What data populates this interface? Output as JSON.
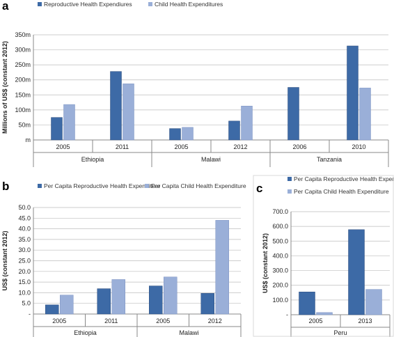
{
  "colors": {
    "dark": "#3d6aa6",
    "light": "#9aafd8",
    "stroke": "#2f4f7f"
  },
  "chart_data": [
    {
      "panel": "a",
      "type": "bar",
      "ylabel": "Millions of US$ (constant 2012)",
      "yticks": [
        "m",
        "50m",
        "100m",
        "150m",
        "200m",
        "250m",
        "300m",
        "350m"
      ],
      "ylim": [
        0,
        350
      ],
      "legend_position": "top",
      "categories": [
        "2005",
        "2011",
        "2005",
        "2012",
        "2006",
        "2010"
      ],
      "groups": [
        {
          "label": "Ethiopia",
          "span": [
            0,
            1
          ]
        },
        {
          "label": "Malawi",
          "span": [
            2,
            3
          ]
        },
        {
          "label": "Tanzania",
          "span": [
            4,
            5
          ]
        }
      ],
      "series": [
        {
          "name": "Reproductive Health Expendiures",
          "values": [
            75,
            228,
            38,
            63,
            175,
            313
          ]
        },
        {
          "name": "Child Health Expenditures",
          "values": [
            118,
            187,
            42,
            113,
            null,
            173
          ]
        }
      ]
    },
    {
      "panel": "b",
      "type": "bar",
      "ylabel": "US$ (constant 2012)",
      "yticks": [
        "-",
        "5.0",
        "10.0",
        "15.0",
        "20.0",
        "25.0",
        "30.0",
        "35.0",
        "40.0",
        "45.0",
        "50.0"
      ],
      "ylim": [
        0,
        50
      ],
      "legend_position": "top",
      "categories": [
        "2005",
        "2011",
        "2005",
        "2012"
      ],
      "groups": [
        {
          "label": "Ethiopia",
          "span": [
            0,
            1
          ]
        },
        {
          "label": "Malawi",
          "span": [
            2,
            3
          ]
        }
      ],
      "series": [
        {
          "name": "Per Capita Reproductive Health Expenditure",
          "values": [
            4.3,
            11.9,
            13.2,
            9.7
          ]
        },
        {
          "name": "Per Capita Child Health Expenditure",
          "values": [
            8.9,
            16.2,
            17.4,
            44.0
          ]
        }
      ]
    },
    {
      "panel": "c",
      "type": "bar",
      "ylabel": "US$ (constant 2012)",
      "yticks": [
        "-",
        "100.0",
        "200.0",
        "300.0",
        "400.0",
        "500.0",
        "600.0",
        "700.0"
      ],
      "ylim": [
        0,
        700
      ],
      "legend_position": "top",
      "categories": [
        "2005",
        "2013"
      ],
      "groups": [
        {
          "label": "Peru",
          "span": [
            0,
            1
          ]
        }
      ],
      "series": [
        {
          "name": "Per Capita Reproductive Health Expenditure",
          "values": [
            155,
            578
          ]
        },
        {
          "name": "Per Capita Child Health Expenditure",
          "values": [
            15,
            172
          ]
        }
      ]
    }
  ]
}
